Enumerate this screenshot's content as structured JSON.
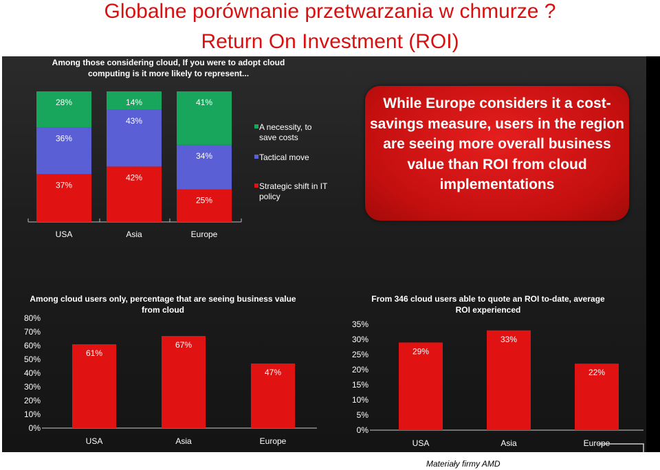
{
  "header": {
    "title_line1": "Globalne porównanie przetwarzania w chmurze ?",
    "title_line2": "Return On Investment (ROI)"
  },
  "footer": {
    "credit": "Materiały firmy AMD"
  },
  "callout": {
    "text": "While Europe considers it a cost-savings measure, users in the region are seeing more overall business value than ROI from cloud implementations"
  },
  "colors": {
    "green": "#17a65b",
    "blue": "#5b5fd6",
    "red": "#e01212",
    "title": "#d81010"
  },
  "chart_data": [
    {
      "type": "bar",
      "stacked": true,
      "title": "Among those considering cloud, If you were to adopt cloud computing is it more likely to represent...",
      "categories": [
        "USA",
        "Asia",
        "Europe"
      ],
      "series": [
        {
          "name": "Strategic shift in IT policy",
          "values": [
            37,
            42,
            25
          ],
          "labels": [
            "37%",
            "42%",
            "25%"
          ]
        },
        {
          "name": "Tactical move",
          "values": [
            36,
            43,
            34
          ],
          "labels": [
            "36%",
            "43%",
            "34%"
          ]
        },
        {
          "name": "A necessity, to save costs",
          "values": [
            28,
            14,
            41
          ],
          "labels": [
            "28%",
            "14%",
            "41%"
          ]
        }
      ],
      "legend": "right"
    },
    {
      "type": "bar",
      "title": "Among cloud users only, percentage that are seeing business value from cloud",
      "categories": [
        "USA",
        "Asia",
        "Europe"
      ],
      "values": [
        61,
        67,
        47
      ],
      "labels": [
        "61%",
        "67%",
        "47%"
      ],
      "yticks": [
        "0%",
        "10%",
        "20%",
        "30%",
        "40%",
        "50%",
        "60%",
        "70%",
        "80%"
      ],
      "ylim": [
        0,
        80
      ]
    },
    {
      "type": "bar",
      "title": "From 346 cloud users able to quote an ROI to-date, average ROI experienced",
      "categories": [
        "USA",
        "Asia",
        "Europe"
      ],
      "values": [
        29,
        33,
        22
      ],
      "labels": [
        "29%",
        "33%",
        "22%"
      ],
      "yticks": [
        "0%",
        "5%",
        "10%",
        "15%",
        "20%",
        "25%",
        "30%",
        "35%"
      ],
      "ylim": [
        0,
        35
      ]
    }
  ]
}
